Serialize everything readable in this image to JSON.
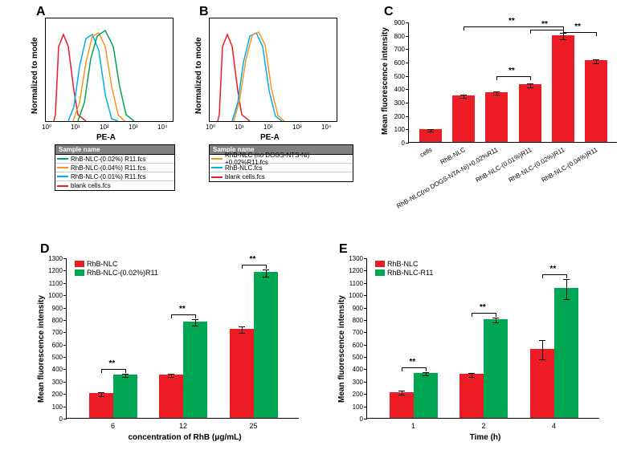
{
  "colors": {
    "red": "#ed1c24",
    "green": "#00a651",
    "blue": "#00aeef",
    "orange": "#f7941e",
    "black": "#000000",
    "legend_header": "#808080"
  },
  "panels": {
    "A": {
      "label": "A",
      "ylabel": "Normalized to mode",
      "xlabel": "PE-A",
      "xticks": [
        "10⁰",
        "10¹",
        "10²",
        "10³",
        "10⁴"
      ],
      "legend_header": "Sample name",
      "legend": [
        {
          "color": "#00a651",
          "label": "RhB-NLC-(0.02%) R11.fcs"
        },
        {
          "color": "#f7941e",
          "label": "RhB-NLC-(0.04%) R11.fcs"
        },
        {
          "color": "#00aeef",
          "label": "RhB-NLC-(0.01%) R11.fcs"
        },
        {
          "color": "#ed1c24",
          "label": "blank cells.fcs"
        }
      ]
    },
    "B": {
      "label": "B",
      "ylabel": "Normalized to mode",
      "xlabel": "PE-A",
      "xticks": [
        "10⁰",
        "10¹",
        "10²",
        "10³",
        "10⁴"
      ],
      "legend_header": "Sample name",
      "legend": [
        {
          "color": "#f7941e",
          "label": "RhB-NLC (no DOGS-NTS-Ni) +0.02%R11.fcs"
        },
        {
          "color": "#00aeef",
          "label": "RhB-NLC.fcs"
        },
        {
          "color": "#ed1c24",
          "label": "blank cells.fcs"
        }
      ]
    },
    "C": {
      "label": "C",
      "ylabel": "Mean fluorescence intensity",
      "ylim": [
        0,
        900
      ],
      "ytick_step": 100,
      "bar_color": "#ed1c24",
      "categories": [
        "cells",
        "RhB-NLC",
        "RhB-NLC(no DOGS-NTA-Ni)+0.02%R11",
        "RhB-NLC-(0.01%)R11",
        "RhB-NLC-(0.02%)R11",
        "RhB-NLC-(0.04%)R11"
      ],
      "values": [
        95,
        350,
        375,
        430,
        800,
        610
      ],
      "errors": [
        10,
        12,
        12,
        15,
        25,
        15
      ],
      "sig": [
        {
          "from": 2,
          "to": 3,
          "y": 500,
          "label": "**"
        },
        {
          "from": 1,
          "to": 4,
          "y": 870,
          "label": "**"
        },
        {
          "from": 3,
          "to": 4,
          "y": 845,
          "label": "**"
        },
        {
          "from": 4,
          "to": 5,
          "y": 830,
          "label": "**"
        }
      ]
    },
    "D": {
      "label": "D",
      "ylabel": "Mean fluorescence intensity",
      "xlabel": "concentration of RhB (μg/mL)",
      "ylim": [
        0,
        1300
      ],
      "ytick_step": 100,
      "categories": [
        "6",
        "12",
        "25"
      ],
      "series": [
        {
          "name": "RhB-NLC",
          "color": "#ed1c24",
          "values": [
            200,
            350,
            720
          ],
          "errors": [
            15,
            15,
            25
          ]
        },
        {
          "name": "RhB-NLC-(0.02%)R11",
          "color": "#00a651",
          "values": [
            350,
            780,
            1180
          ],
          "errors": [
            15,
            25,
            30
          ]
        }
      ],
      "sig_label": "**"
    },
    "E": {
      "label": "E",
      "ylabel": "Mean fluorescence intensity",
      "xlabel": "Time (h)",
      "ylim": [
        0,
        1300
      ],
      "ytick_step": 100,
      "categories": [
        "1",
        "2",
        "4"
      ],
      "series": [
        {
          "name": "RhB-NLC",
          "color": "#ed1c24",
          "values": [
            210,
            355,
            560
          ],
          "errors": [
            15,
            15,
            80
          ]
        },
        {
          "name": "RhB-NLC-R11",
          "color": "#00a651",
          "values": [
            365,
            800,
            1050
          ],
          "errors": [
            15,
            20,
            80
          ]
        }
      ],
      "sig_label": "**"
    }
  }
}
